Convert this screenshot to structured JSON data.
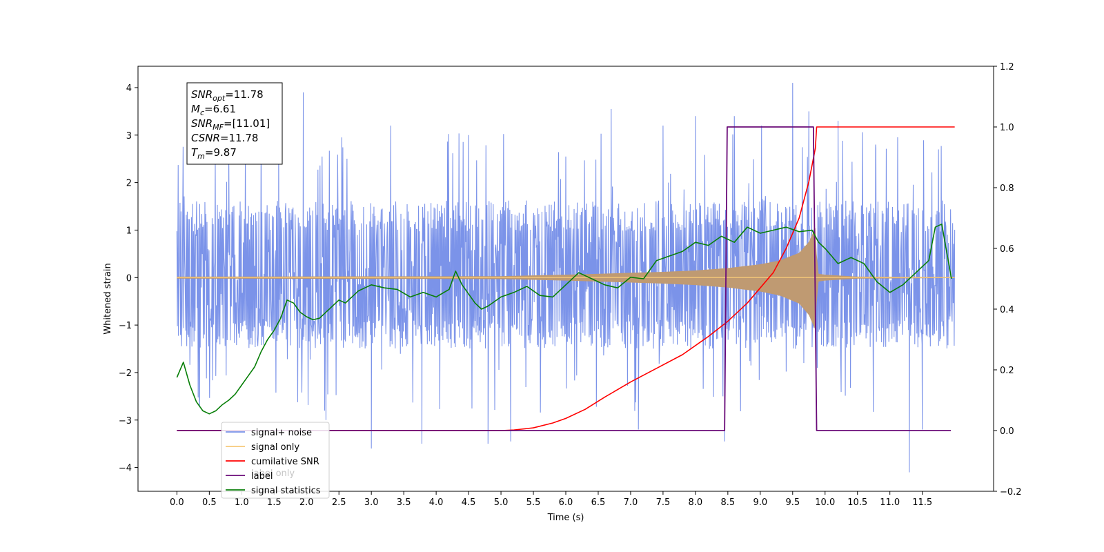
{
  "chart_data": {
    "type": "line",
    "xlabel": "Time (s)",
    "ylabel": "Whitened strain",
    "xlim": [
      -0.6,
      12.6
    ],
    "ylim": [
      -4.5,
      4.45
    ],
    "y2lim": [
      -0.2,
      1.2
    ],
    "xticks": [
      "0.0",
      "0.5",
      "1.0",
      "1.5",
      "2.0",
      "2.5",
      "3.0",
      "3.5",
      "4.0",
      "4.5",
      "5.0",
      "5.5",
      "6.0",
      "6.5",
      "7.0",
      "7.5",
      "8.0",
      "8.5",
      "9.0",
      "9.5",
      "10.0",
      "10.5",
      "11.0",
      "11.5"
    ],
    "yticks": [
      "−4",
      "−3",
      "−2",
      "−1",
      "0",
      "1",
      "2",
      "3",
      "4"
    ],
    "y2ticks": [
      "−0.2",
      "0.0",
      "0.2",
      "0.4",
      "0.6",
      "0.8",
      "1.0",
      "1.2"
    ],
    "legend": {
      "position": "lower-left",
      "entries": [
        {
          "label": "signal+ noise",
          "color": "#7790e8"
        },
        {
          "label": "signal only",
          "color": "#f7c97a"
        },
        {
          "label": "cumilative SNR",
          "color": "#ff0000"
        },
        {
          "label": "label",
          "color": "#6a0a78"
        },
        {
          "label": "signal statistics",
          "color": "#087f08"
        }
      ],
      "overlap_text": "label only"
    },
    "annotation": [
      {
        "sym": "SNR",
        "sub": "opt",
        "value": "=11.78"
      },
      {
        "sym": "M",
        "sub": "c",
        "value": "=6.61"
      },
      {
        "sym": "SNR",
        "sub": "MF",
        "value": "=[11.01]"
      },
      {
        "sym": "CSNR",
        "sub": "",
        "value": "=11.78"
      },
      {
        "sym": "T",
        "sub": "m",
        "value": "=9.87"
      }
    ],
    "series": [
      {
        "name": "signal+ noise",
        "axis": "left",
        "color": "#7790e8",
        "x_range": [
          0,
          12
        ],
        "band": [
          -1.2,
          1.3
        ],
        "spikes": [
          [
            0.02,
            2.37
          ],
          [
            0.35,
            -2.7
          ],
          [
            0.8,
            2.9
          ],
          [
            1.3,
            3.4
          ],
          [
            1.57,
            2.9
          ],
          [
            1.95,
            3.9
          ],
          [
            2.3,
            -3.0
          ],
          [
            3.0,
            -3.6
          ],
          [
            3.3,
            3.2
          ],
          [
            3.78,
            -3.5
          ],
          [
            4.5,
            3.0
          ],
          [
            4.8,
            -3.5
          ],
          [
            5.15,
            -3.45
          ],
          [
            6.7,
            3.55
          ],
          [
            7.12,
            -3.2
          ],
          [
            7.5,
            3.2
          ],
          [
            8.0,
            3.4
          ],
          [
            8.45,
            -3.45
          ],
          [
            8.6,
            3.4
          ],
          [
            9.02,
            3.2
          ],
          [
            9.5,
            4.1
          ],
          [
            9.75,
            3.5
          ],
          [
            10.2,
            3.3
          ],
          [
            10.78,
            2.8
          ],
          [
            11.3,
            -4.1
          ],
          [
            11.5,
            -3.2
          ],
          [
            11.75,
            2.7
          ]
        ]
      },
      {
        "name": "signal only",
        "axis": "left",
        "color": "#f7c97a",
        "envelope": [
          [
            0,
            0.02
          ],
          [
            5.0,
            0.03
          ],
          [
            6.0,
            0.06
          ],
          [
            7.0,
            0.1
          ],
          [
            7.5,
            0.12
          ],
          [
            8.0,
            0.15
          ],
          [
            8.5,
            0.2
          ],
          [
            9.0,
            0.28
          ],
          [
            9.3,
            0.36
          ],
          [
            9.6,
            0.52
          ],
          [
            9.75,
            0.75
          ],
          [
            9.85,
            1.05
          ],
          [
            9.87,
            0.5
          ],
          [
            9.9,
            0.08
          ],
          [
            10.0,
            0.06
          ],
          [
            10.5,
            0.02
          ],
          [
            12.0,
            0.01
          ]
        ]
      },
      {
        "name": "cumilative SNR",
        "axis": "right",
        "color": "#ff0000",
        "x": [
          0,
          5.0,
          5.2,
          5.5,
          5.8,
          6.0,
          6.3,
          6.6,
          7.0,
          7.4,
          7.8,
          8.2,
          8.5,
          8.8,
          9.0,
          9.2,
          9.4,
          9.6,
          9.75,
          9.85,
          9.87,
          12.0
        ],
        "y": [
          0,
          0,
          0.002,
          0.009,
          0.025,
          0.04,
          0.07,
          0.11,
          0.16,
          0.205,
          0.25,
          0.31,
          0.36,
          0.42,
          0.47,
          0.52,
          0.6,
          0.7,
          0.82,
          0.93,
          1.0,
          1.0
        ]
      },
      {
        "name": "label",
        "axis": "right",
        "color": "#6a0a78",
        "x": [
          0,
          8.45,
          8.49,
          9.82,
          9.87,
          11.94
        ],
        "y": [
          0,
          0,
          1,
          1,
          0,
          0
        ]
      },
      {
        "name": "signal statistics",
        "axis": "right",
        "color": "#087f08",
        "x": [
          0,
          0.1,
          0.2,
          0.3,
          0.4,
          0.5,
          0.6,
          0.7,
          0.8,
          0.9,
          1.0,
          1.1,
          1.2,
          1.3,
          1.4,
          1.5,
          1.6,
          1.7,
          1.8,
          1.9,
          2.0,
          2.1,
          2.2,
          2.3,
          2.4,
          2.5,
          2.6,
          2.7,
          2.8,
          2.9,
          3.0,
          3.2,
          3.4,
          3.6,
          3.8,
          4.0,
          4.2,
          4.3,
          4.4,
          4.6,
          4.7,
          4.8,
          5.0,
          5.2,
          5.4,
          5.6,
          5.8,
          6.0,
          6.2,
          6.4,
          6.6,
          6.8,
          7.0,
          7.2,
          7.4,
          7.6,
          7.8,
          8.0,
          8.2,
          8.4,
          8.6,
          8.8,
          9.0,
          9.2,
          9.4,
          9.6,
          9.8,
          9.9,
          10.0,
          10.2,
          10.4,
          10.6,
          10.8,
          11.0,
          11.2,
          11.4,
          11.6,
          11.7,
          11.8,
          11.95
        ],
        "y": [
          0.175,
          0.225,
          0.15,
          0.095,
          0.065,
          0.055,
          0.065,
          0.085,
          0.1,
          0.12,
          0.15,
          0.18,
          0.21,
          0.26,
          0.3,
          0.33,
          0.37,
          0.43,
          0.42,
          0.39,
          0.375,
          0.365,
          0.37,
          0.39,
          0.41,
          0.43,
          0.42,
          0.44,
          0.46,
          0.47,
          0.48,
          0.47,
          0.465,
          0.44,
          0.455,
          0.44,
          0.465,
          0.525,
          0.48,
          0.42,
          0.4,
          0.41,
          0.44,
          0.455,
          0.475,
          0.445,
          0.44,
          0.48,
          0.52,
          0.5,
          0.48,
          0.47,
          0.505,
          0.5,
          0.56,
          0.575,
          0.59,
          0.62,
          0.61,
          0.64,
          0.62,
          0.67,
          0.65,
          0.66,
          0.67,
          0.655,
          0.66,
          0.62,
          0.6,
          0.55,
          0.57,
          0.55,
          0.49,
          0.455,
          0.48,
          0.52,
          0.56,
          0.67,
          0.68,
          0.5
        ]
      }
    ]
  }
}
